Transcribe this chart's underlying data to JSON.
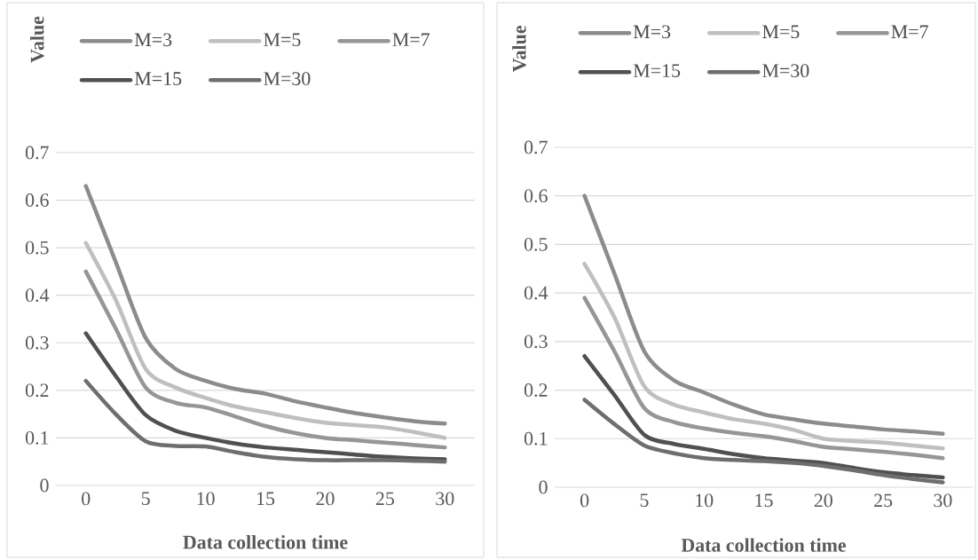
{
  "chart_data": [
    {
      "type": "line",
      "xlabel": "Data collection time",
      "ylabel": "Value",
      "x": [
        0,
        2.5,
        5,
        7.5,
        10,
        12.5,
        15,
        17.5,
        20,
        22.5,
        25,
        27.5,
        30
      ],
      "xlim": [
        -2.5,
        32.5
      ],
      "ylim": [
        0,
        0.7
      ],
      "xticks": [
        0,
        5,
        10,
        15,
        20,
        25,
        30
      ],
      "yticks": [
        0,
        0.1,
        0.2,
        0.3,
        0.4,
        0.5,
        0.6,
        0.7
      ],
      "grid": "y",
      "legend": "top",
      "series": [
        {
          "name": "M=3",
          "color": "#8c8c8c",
          "values": [
            0.63,
            0.47,
            0.31,
            0.245,
            0.22,
            0.203,
            0.193,
            0.177,
            0.164,
            0.152,
            0.143,
            0.135,
            0.13
          ]
        },
        {
          "name": "M=5",
          "color": "#bfbfbf",
          "values": [
            0.51,
            0.39,
            0.245,
            0.206,
            0.184,
            0.166,
            0.154,
            0.142,
            0.132,
            0.127,
            0.122,
            0.112,
            0.1
          ]
        },
        {
          "name": "M=7",
          "color": "#969696",
          "values": [
            0.45,
            0.33,
            0.206,
            0.174,
            0.164,
            0.145,
            0.125,
            0.11,
            0.1,
            0.095,
            0.09,
            0.085,
            0.08
          ]
        },
        {
          "name": "M=15",
          "color": "#505050",
          "values": [
            0.32,
            0.23,
            0.148,
            0.115,
            0.1,
            0.088,
            0.08,
            0.075,
            0.07,
            0.065,
            0.06,
            0.057,
            0.055
          ]
        },
        {
          "name": "M=30",
          "color": "#6e6e6e",
          "values": [
            0.22,
            0.15,
            0.093,
            0.083,
            0.082,
            0.07,
            0.06,
            0.055,
            0.053,
            0.053,
            0.053,
            0.052,
            0.05
          ]
        }
      ]
    },
    {
      "type": "line",
      "xlabel": "Data collection time",
      "ylabel": "Value",
      "x": [
        0,
        2.5,
        5,
        7.5,
        10,
        12.5,
        15,
        17.5,
        20,
        22.5,
        25,
        27.5,
        30
      ],
      "xlim": [
        -2.5,
        32.5
      ],
      "ylim": [
        0,
        0.7
      ],
      "xticks": [
        0,
        5,
        10,
        15,
        20,
        25,
        30
      ],
      "yticks": [
        0,
        0.1,
        0.2,
        0.3,
        0.4,
        0.5,
        0.6,
        0.7
      ],
      "grid": "y",
      "legend": "top",
      "series": [
        {
          "name": "M=3",
          "color": "#8c8c8c",
          "values": [
            0.6,
            0.44,
            0.28,
            0.22,
            0.195,
            0.17,
            0.15,
            0.14,
            0.131,
            0.125,
            0.119,
            0.115,
            0.11
          ]
        },
        {
          "name": "M=5",
          "color": "#bfbfbf",
          "values": [
            0.46,
            0.35,
            0.208,
            0.17,
            0.154,
            0.14,
            0.131,
            0.118,
            0.1,
            0.095,
            0.092,
            0.086,
            0.08
          ]
        },
        {
          "name": "M=7",
          "color": "#969696",
          "values": [
            0.39,
            0.28,
            0.163,
            0.134,
            0.121,
            0.112,
            0.105,
            0.095,
            0.083,
            0.078,
            0.073,
            0.067,
            0.06
          ]
        },
        {
          "name": "M=15",
          "color": "#505050",
          "values": [
            0.27,
            0.19,
            0.108,
            0.089,
            0.079,
            0.068,
            0.06,
            0.055,
            0.05,
            0.04,
            0.031,
            0.025,
            0.02
          ]
        },
        {
          "name": "M=30",
          "color": "#6e6e6e",
          "values": [
            0.18,
            0.13,
            0.086,
            0.07,
            0.06,
            0.056,
            0.054,
            0.05,
            0.044,
            0.035,
            0.025,
            0.017,
            0.01
          ]
        }
      ]
    }
  ]
}
